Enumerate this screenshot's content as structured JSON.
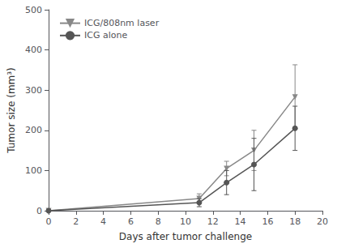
{
  "chart_data": {
    "type": "line",
    "xlabel": "Days after tumor challenge",
    "ylabel": "Tumor size (mm³)",
    "x": [
      0,
      11,
      13,
      15,
      18
    ],
    "series": [
      {
        "name": "ICG/808nm laser",
        "color": "#888888",
        "marker": "triangle_down",
        "values": [
          0,
          30,
          105,
          150,
          283
        ],
        "yerr": [
          0,
          12,
          18,
          50,
          80
        ]
      },
      {
        "name": "ICG alone",
        "color": "#555555",
        "marker": "circle",
        "values": [
          0,
          20,
          70,
          115,
          205
        ],
        "yerr": [
          0,
          10,
          30,
          65,
          55
        ]
      }
    ],
    "xlim": [
      0,
      20
    ],
    "xticks": [
      0,
      2,
      4,
      6,
      8,
      10,
      12,
      14,
      16,
      18,
      20
    ],
    "ylim": [
      0,
      500
    ],
    "yticks": [
      0,
      100,
      200,
      300,
      400,
      500
    ],
    "grid": false,
    "legend": "upper left"
  }
}
